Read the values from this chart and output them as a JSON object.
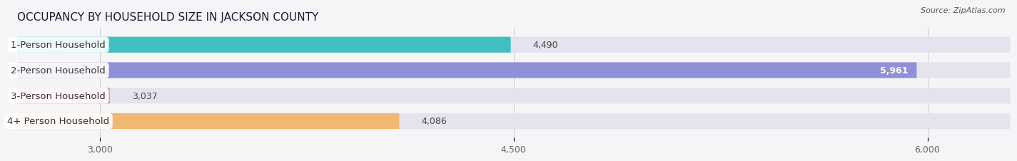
{
  "title": "OCCUPANCY BY HOUSEHOLD SIZE IN JACKSON COUNTY",
  "source": "Source: ZipAtlas.com",
  "categories": [
    "1-Person Household",
    "2-Person Household",
    "3-Person Household",
    "4+ Person Household"
  ],
  "values": [
    4490,
    5961,
    3037,
    4086
  ],
  "bar_colors": [
    "#40c0c0",
    "#9090d8",
    "#f088a0",
    "#f0b870"
  ],
  "bar_bg_color": "#e4e4ee",
  "xmin": 2700,
  "xmax": 6300,
  "xlim": [
    2700,
    6300
  ],
  "xticks": [
    3000,
    4500,
    6000
  ],
  "xtick_labels": [
    "3,000",
    "4,500",
    "6,000"
  ],
  "value_labels": [
    "4,490",
    "5,961",
    "3,037",
    "4,086"
  ],
  "value_inside": [
    false,
    true,
    false,
    false
  ],
  "title_fontsize": 11,
  "label_fontsize": 9.5,
  "value_fontsize": 9,
  "bar_height": 0.62,
  "background_color": "#f5f5f8",
  "label_box_color": "#ffffff"
}
